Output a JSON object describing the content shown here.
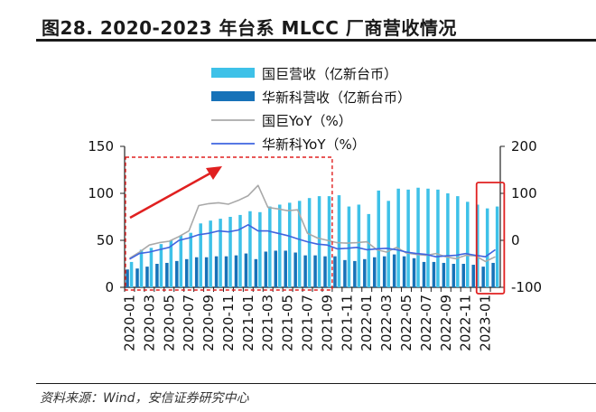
{
  "title": "图28. 2020-2023 年台系 MLCC 厂商营收情况",
  "source": "资料来源：Wind，安信证券研究中心",
  "colors": {
    "yageo_rev": "#3EC1E8",
    "walsin_rev": "#1772B8",
    "yageo_yoy": "#A9A9A9",
    "walsin_yoy": "#3F64E0",
    "highlight": "#E02020"
  },
  "chart_data": {
    "type": "bar",
    "categories": [
      "2020-01",
      "2020-02",
      "2020-03",
      "2020-04",
      "2020-05",
      "2020-06",
      "2020-07",
      "2020-08",
      "2020-09",
      "2020-10",
      "2020-11",
      "2020-12",
      "2021-01",
      "2021-02",
      "2021-03",
      "2021-04",
      "2021-05",
      "2021-06",
      "2021-07",
      "2021-08",
      "2021-09",
      "2021-10",
      "2021-11",
      "2021-12",
      "2022-01",
      "2022-02",
      "2022-03",
      "2022-04",
      "2022-05",
      "2022-06",
      "2022-07",
      "2022-08",
      "2022-09",
      "2022-10",
      "2022-11",
      "2022-12",
      "2023-01",
      "2023-02"
    ],
    "tick_labels": [
      "2020-01",
      "2020-03",
      "2020-05",
      "2020-07",
      "2020-09",
      "2020-11",
      "2021-01",
      "2021-03",
      "2021-05",
      "2021-07",
      "2021-09",
      "2021-11",
      "2022-01",
      "2022-03",
      "2022-05",
      "2022-07",
      "2022-09",
      "2022-11",
      "2023-01"
    ],
    "series": [
      {
        "name": "国巨营收（亿新台币）",
        "axis": "left",
        "kind": "bar",
        "values": [
          27,
          40,
          42,
          46,
          50,
          55,
          58,
          68,
          71,
          73,
          75,
          77,
          81,
          80,
          86,
          88,
          90,
          92,
          95,
          97,
          97,
          98,
          86,
          88,
          78,
          103,
          92,
          105,
          104,
          106,
          105,
          104,
          100,
          97,
          91,
          88,
          84,
          86
        ]
      },
      {
        "name": "华新科营收（亿新台币）",
        "axis": "left",
        "kind": "bar",
        "values": [
          19,
          20,
          22,
          25,
          26,
          28,
          30,
          32,
          32,
          33,
          33,
          34,
          36,
          30,
          38,
          39,
          39,
          37,
          34,
          34,
          33,
          33,
          29,
          28,
          30,
          32,
          33,
          35,
          33,
          31,
          27,
          27,
          26,
          25,
          25,
          24,
          22,
          26
        ]
      },
      {
        "name": "国巨YoY（%）",
        "axis": "right",
        "kind": "line",
        "values": [
          -38,
          -25,
          -10,
          -5,
          -2,
          8,
          20,
          74,
          78,
          80,
          77,
          85,
          95,
          117,
          70,
          67,
          63,
          65,
          15,
          5,
          0,
          -5,
          -6,
          -5,
          -3,
          -20,
          -25,
          -15,
          -27,
          -30,
          -32,
          -28,
          -35,
          -39,
          -32,
          -33,
          -45,
          -35
        ]
      },
      {
        "name": "华新科YoY（%）",
        "axis": "right",
        "kind": "line",
        "values": [
          -40,
          -28,
          -25,
          -20,
          -15,
          0,
          5,
          12,
          15,
          20,
          18,
          22,
          33,
          20,
          20,
          15,
          10,
          3,
          -3,
          -8,
          -10,
          -18,
          -17,
          -15,
          -20,
          -18,
          -17,
          -20,
          -25,
          -28,
          -30,
          -35,
          -33,
          -32,
          -28,
          -32,
          -35,
          -20
        ]
      }
    ],
    "y_left": {
      "min": 0,
      "max": 150,
      "ticks": [
        0,
        50,
        100,
        150
      ]
    },
    "y_right": {
      "min": -100,
      "max": 200,
      "ticks": [
        -100,
        0,
        100,
        200
      ]
    },
    "legend": [
      {
        "label": "国巨营收（亿新台币）",
        "kind": "bar",
        "color": "#3EC1E8"
      },
      {
        "label": "华新科营收（亿新台币）",
        "kind": "bar",
        "color": "#1772B8"
      },
      {
        "label": "国巨YoY（%）",
        "kind": "line",
        "color": "#A9A9A9"
      },
      {
        "label": "华新科YoY（%）",
        "kind": "line",
        "color": "#3F64E0"
      }
    ],
    "legend_position": "top-center",
    "grid": false
  }
}
